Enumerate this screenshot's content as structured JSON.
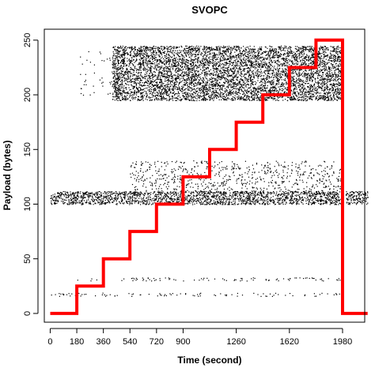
{
  "chart_data": {
    "type": "scatter",
    "title": "SVOPC",
    "xlabel": "Time (second)",
    "ylabel": "Payload (bytes)",
    "xlim": [
      -40,
      2130
    ],
    "ylim": [
      -8,
      260
    ],
    "x_ticks": [
      0,
      180,
      360,
      540,
      720,
      900,
      1260,
      1620,
      1980
    ],
    "y_ticks": [
      0,
      50,
      100,
      150,
      200,
      250
    ],
    "grid": false,
    "legend": "none",
    "colors": {
      "points": "#000000",
      "step_line": "#ff0000"
    },
    "point_clusters": [
      {
        "x": [
          0,
          1980
        ],
        "y": [
          100,
          112
        ],
        "density": "very-high"
      },
      {
        "x": [
          200,
          420
        ],
        "y": [
          200,
          240
        ],
        "density": "low"
      },
      {
        "x": [
          420,
          1980
        ],
        "y": [
          195,
          245
        ],
        "density": "very-high"
      },
      {
        "x": [
          540,
          1980
        ],
        "y": [
          110,
          140
        ],
        "density": "medium"
      },
      {
        "x": [
          180,
          1980
        ],
        "y": [
          30,
          33
        ],
        "density": "medium"
      },
      {
        "x": [
          0,
          1980
        ],
        "y": [
          16,
          19
        ],
        "density": "medium"
      },
      {
        "x": [
          2000,
          2150
        ],
        "y": [
          100,
          112
        ],
        "density": "very-high"
      }
    ],
    "series": [
      {
        "type": "step",
        "x": [
          0,
          180,
          180,
          360,
          360,
          540,
          540,
          720,
          720,
          900,
          900,
          1080,
          1080,
          1260,
          1260,
          1440,
          1440,
          1620,
          1620,
          1800,
          1800,
          1980,
          1980,
          2150
        ],
        "y": [
          0,
          0,
          25,
          25,
          50,
          50,
          75,
          75,
          100,
          100,
          125,
          125,
          150,
          150,
          175,
          175,
          200,
          200,
          225,
          225,
          250,
          250,
          0,
          0
        ]
      }
    ]
  }
}
